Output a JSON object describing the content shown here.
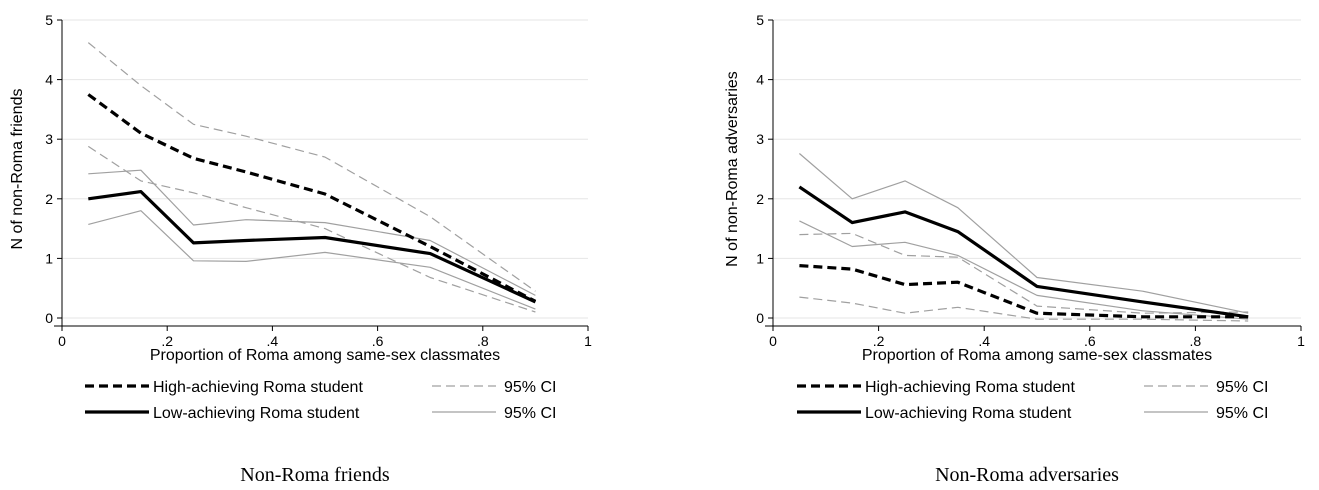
{
  "chart_data": [
    {
      "type": "line",
      "caption": "Non-Roma friends",
      "xlabel": "Proportion of Roma among same-sex classmates",
      "ylabel": "N of non-Roma friends",
      "xlim": [
        0,
        1
      ],
      "ylim": [
        0,
        5
      ],
      "xticks": [
        0,
        0.2,
        0.4,
        0.6,
        0.8,
        1
      ],
      "xtick_labels": [
        "0",
        ".2",
        ".4",
        ".6",
        ".8",
        "1"
      ],
      "yticks": [
        0,
        1,
        2,
        3,
        4,
        5
      ],
      "ytick_labels": [
        "0",
        "1",
        "2",
        "3",
        "4",
        "5"
      ],
      "grid": "horizontal",
      "legend_position": "bottom",
      "x": [
        0.05,
        0.15,
        0.25,
        0.35,
        0.5,
        0.7,
        0.9
      ],
      "series": [
        {
          "name": "High-achieving Roma student",
          "style": "dashed-thick",
          "color": "#000000",
          "values": [
            3.75,
            3.1,
            2.68,
            2.45,
            2.08,
            1.2,
            0.28
          ]
        },
        {
          "name": "95% CI",
          "style": "dashed-thin",
          "color": "#999999",
          "values": [
            4.62,
            3.9,
            3.25,
            3.05,
            2.7,
            1.7,
            0.45
          ]
        },
        {
          "name": "",
          "style": "dashed-thin",
          "color": "#999999",
          "values": [
            2.88,
            2.3,
            2.1,
            1.85,
            1.5,
            0.68,
            0.1
          ]
        },
        {
          "name": "Low-achieving Roma student",
          "style": "solid-thick",
          "color": "#000000",
          "values": [
            2.0,
            2.12,
            1.26,
            1.3,
            1.35,
            1.08,
            0.27
          ]
        },
        {
          "name": "95% CI",
          "style": "solid-thin",
          "color": "#999999",
          "values": [
            2.42,
            2.48,
            1.56,
            1.65,
            1.6,
            1.3,
            0.38
          ]
        },
        {
          "name": "",
          "style": "solid-thin",
          "color": "#999999",
          "values": [
            1.57,
            1.8,
            0.96,
            0.95,
            1.1,
            0.85,
            0.15
          ]
        }
      ]
    },
    {
      "type": "line",
      "caption": "Non-Roma adversaries",
      "xlabel": "Proportion of Roma among same-sex classmates",
      "ylabel": "N of non-Roma adversaries",
      "xlim": [
        0,
        1
      ],
      "ylim": [
        0,
        5
      ],
      "xticks": [
        0,
        0.2,
        0.4,
        0.6,
        0.8,
        1
      ],
      "xtick_labels": [
        "0",
        ".2",
        ".4",
        ".6",
        ".8",
        "1"
      ],
      "yticks": [
        0,
        1,
        2,
        3,
        4,
        5
      ],
      "ytick_labels": [
        "0",
        "1",
        "2",
        "3",
        "4",
        "5"
      ],
      "grid": "horizontal",
      "legend_position": "bottom",
      "x": [
        0.05,
        0.15,
        0.25,
        0.35,
        0.5,
        0.7,
        0.9
      ],
      "series": [
        {
          "name": "High-achieving Roma student",
          "style": "dashed-thick",
          "color": "#000000",
          "values": [
            0.88,
            0.82,
            0.56,
            0.6,
            0.08,
            0.02,
            0.02
          ]
        },
        {
          "name": "95% CI",
          "style": "dashed-thin",
          "color": "#999999",
          "values": [
            1.4,
            1.42,
            1.05,
            1.02,
            0.2,
            0.08,
            0.1
          ]
        },
        {
          "name": "",
          "style": "dashed-thin",
          "color": "#999999",
          "values": [
            0.35,
            0.25,
            0.08,
            0.18,
            -0.02,
            -0.02,
            -0.05
          ]
        },
        {
          "name": "Low-achieving Roma student",
          "style": "solid-thick",
          "color": "#000000",
          "values": [
            2.2,
            1.6,
            1.78,
            1.45,
            0.53,
            0.27,
            0.02
          ]
        },
        {
          "name": "95% CI",
          "style": "solid-thin",
          "color": "#999999",
          "values": [
            2.76,
            2.0,
            2.3,
            1.85,
            0.68,
            0.45,
            0.08
          ]
        },
        {
          "name": "",
          "style": "solid-thin",
          "color": "#999999",
          "values": [
            1.63,
            1.2,
            1.27,
            1.05,
            0.38,
            0.12,
            -0.02
          ]
        }
      ]
    }
  ],
  "legend": {
    "rows": [
      {
        "left_label": "High-achieving Roma student",
        "left_style": "dashed-thick",
        "right_label": "95% CI",
        "right_style": "dashed-thin"
      },
      {
        "left_label": "Low-achieving Roma student",
        "left_style": "solid-thick",
        "right_label": "95% CI",
        "right_style": "solid-thin"
      }
    ]
  }
}
